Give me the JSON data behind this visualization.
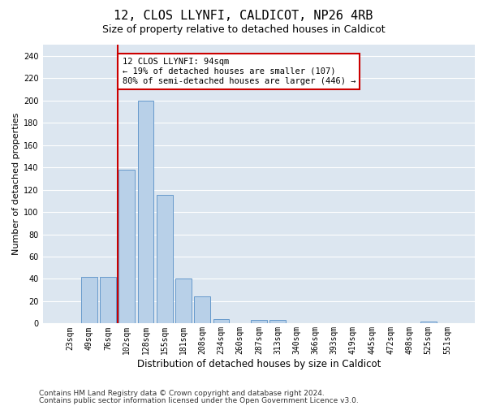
{
  "title1": "12, CLOS LLYNFI, CALDICOT, NP26 4RB",
  "title2": "Size of property relative to detached houses in Caldicot",
  "xlabel": "Distribution of detached houses by size in Caldicot",
  "ylabel": "Number of detached properties",
  "bin_labels": [
    "23sqm",
    "49sqm",
    "76sqm",
    "102sqm",
    "128sqm",
    "155sqm",
    "181sqm",
    "208sqm",
    "234sqm",
    "260sqm",
    "287sqm",
    "313sqm",
    "340sqm",
    "366sqm",
    "393sqm",
    "419sqm",
    "445sqm",
    "472sqm",
    "498sqm",
    "525sqm",
    "551sqm"
  ],
  "bar_values": [
    0,
    42,
    42,
    138,
    200,
    115,
    40,
    24,
    4,
    0,
    3,
    3,
    0,
    0,
    0,
    0,
    0,
    0,
    0,
    2,
    0
  ],
  "bar_color": "#b8d0e8",
  "bar_edge_color": "#6699cc",
  "property_line_color": "#cc0000",
  "annotation_line1": "12 CLOS LLYNFI: 94sqm",
  "annotation_line2": "← 19% of detached houses are smaller (107)",
  "annotation_line3": "80% of semi-detached houses are larger (446) →",
  "annotation_box_color": "#ffffff",
  "annotation_box_edge_color": "#cc0000",
  "ylim": [
    0,
    250
  ],
  "yticks": [
    0,
    20,
    40,
    60,
    80,
    100,
    120,
    140,
    160,
    180,
    200,
    220,
    240
  ],
  "plot_bg_color": "#dce6f0",
  "grid_color": "#ffffff",
  "footer_line1": "Contains HM Land Registry data © Crown copyright and database right 2024.",
  "footer_line2": "Contains public sector information licensed under the Open Government Licence v3.0.",
  "title1_fontsize": 11,
  "title2_fontsize": 9,
  "xlabel_fontsize": 8.5,
  "ylabel_fontsize": 8,
  "tick_fontsize": 7,
  "annotation_fontsize": 7.5,
  "footer_fontsize": 6.5,
  "red_line_bin_index": 3
}
